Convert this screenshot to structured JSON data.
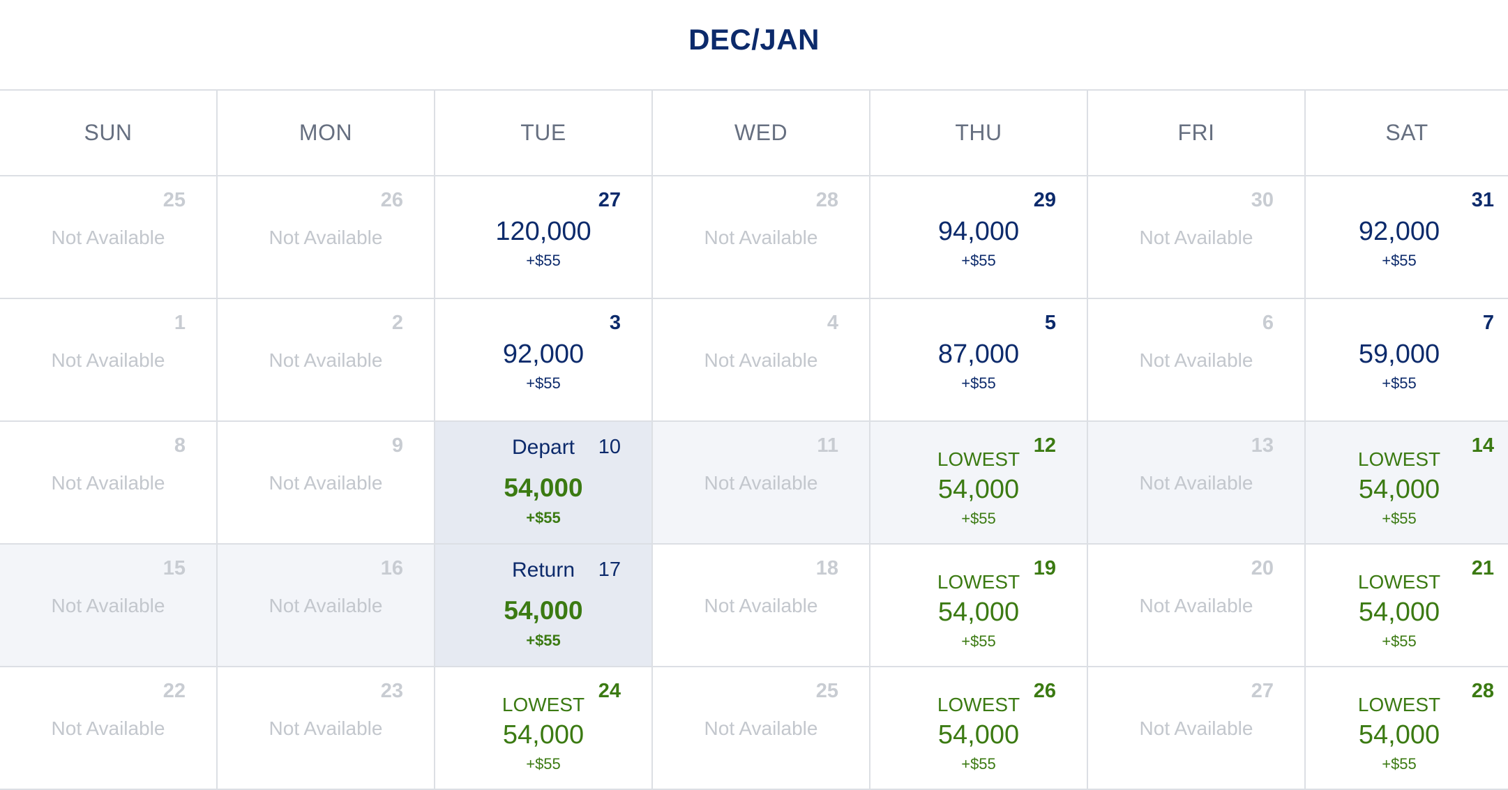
{
  "header": {
    "title": "DEC/JAN"
  },
  "weekdays": [
    "SUN",
    "MON",
    "TUE",
    "WED",
    "THU",
    "FRI",
    "SAT"
  ],
  "weeks": [
    [
      {
        "day": "25",
        "state": "na",
        "text": "Not Available"
      },
      {
        "day": "26",
        "state": "na",
        "text": "Not Available"
      },
      {
        "day": "27",
        "state": "avail",
        "miles": "120,000",
        "fee": "+$55"
      },
      {
        "day": "28",
        "state": "na",
        "text": "Not Available"
      },
      {
        "day": "29",
        "state": "avail",
        "miles": "94,000",
        "fee": "+$55"
      },
      {
        "day": "30",
        "state": "na",
        "text": "Not Available"
      },
      {
        "day": "31",
        "state": "avail",
        "miles": "92,000",
        "fee": "+$55"
      }
    ],
    [
      {
        "day": "1",
        "state": "na",
        "text": "Not Available"
      },
      {
        "day": "2",
        "state": "na",
        "text": "Not Available"
      },
      {
        "day": "3",
        "state": "avail",
        "miles": "92,000",
        "fee": "+$55"
      },
      {
        "day": "4",
        "state": "na",
        "text": "Not Available"
      },
      {
        "day": "5",
        "state": "avail",
        "miles": "87,000",
        "fee": "+$55"
      },
      {
        "day": "6",
        "state": "na",
        "text": "Not Available"
      },
      {
        "day": "7",
        "state": "avail",
        "miles": "59,000",
        "fee": "+$55"
      }
    ],
    [
      {
        "day": "8",
        "state": "na",
        "text": "Not Available"
      },
      {
        "day": "9",
        "state": "na",
        "text": "Not Available"
      },
      {
        "day": "10",
        "state": "selected",
        "label": "Depart",
        "miles": "54,000",
        "fee": "+$55"
      },
      {
        "day": "11",
        "state": "na-range",
        "text": "Not Available"
      },
      {
        "day": "12",
        "state": "lowest",
        "range": true,
        "label": "LOWEST",
        "miles": "54,000",
        "fee": "+$55"
      },
      {
        "day": "13",
        "state": "na-range",
        "text": "Not Available"
      },
      {
        "day": "14",
        "state": "lowest",
        "range": true,
        "label": "LOWEST",
        "miles": "54,000",
        "fee": "+$55"
      }
    ],
    [
      {
        "day": "15",
        "state": "na-range",
        "text": "Not Available"
      },
      {
        "day": "16",
        "state": "na-range",
        "text": "Not Available"
      },
      {
        "day": "17",
        "state": "selected",
        "label": "Return",
        "miles": "54,000",
        "fee": "+$55"
      },
      {
        "day": "18",
        "state": "na",
        "text": "Not Available"
      },
      {
        "day": "19",
        "state": "lowest",
        "label": "LOWEST",
        "miles": "54,000",
        "fee": "+$55"
      },
      {
        "day": "20",
        "state": "na",
        "text": "Not Available"
      },
      {
        "day": "21",
        "state": "lowest",
        "label": "LOWEST",
        "miles": "54,000",
        "fee": "+$55"
      }
    ],
    [
      {
        "day": "22",
        "state": "na",
        "text": "Not Available"
      },
      {
        "day": "23",
        "state": "na",
        "text": "Not Available"
      },
      {
        "day": "24",
        "state": "lowest",
        "label": "LOWEST",
        "miles": "54,000",
        "fee": "+$55"
      },
      {
        "day": "25",
        "state": "na",
        "text": "Not Available"
      },
      {
        "day": "26",
        "state": "lowest",
        "label": "LOWEST",
        "miles": "54,000",
        "fee": "+$55"
      },
      {
        "day": "27",
        "state": "na",
        "text": "Not Available"
      },
      {
        "day": "28",
        "state": "lowest",
        "label": "LOWEST",
        "miles": "54,000",
        "fee": "+$55"
      }
    ]
  ],
  "colors": {
    "navy": "#0c2a6b",
    "green": "#3b7a12",
    "muted": "#c3c7cd",
    "weekday": "#666f80",
    "range_bg": "#f3f5f9",
    "selected_bg": "#e6eaf2",
    "grid_line": "#dcdfe4"
  }
}
